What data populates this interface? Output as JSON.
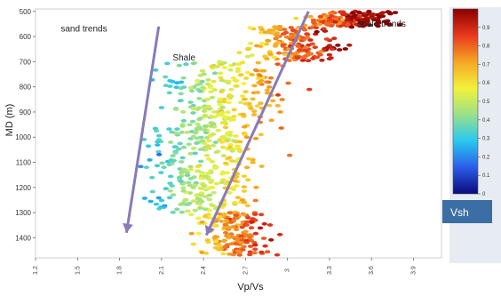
{
  "chart_data": {
    "type": "scatter",
    "xlabel": "Vp/Vs",
    "ylabel": "MD (m)",
    "xticks": [
      "1.2",
      "1.5",
      "1.8",
      "2.1",
      "2.4",
      "2.7",
      "3",
      "3.3",
      "3.6",
      "3.9"
    ],
    "yticks": [
      "500",
      "600",
      "700",
      "800",
      "900",
      "1000",
      "1100",
      "1200",
      "1300",
      "1400"
    ],
    "xlim": [
      1.2,
      4.1
    ],
    "ylim": [
      1480,
      490
    ],
    "y_inverted": true,
    "colorbar": {
      "label": "Vsh",
      "ticks": [
        "0",
        "0.1",
        "0.2",
        "0.3",
        "0.4",
        "0.5",
        "0.6",
        "0.7",
        "0.8",
        "0.9"
      ],
      "range": [
        0,
        1
      ],
      "colors": [
        "#0a0a7a",
        "#2a5de8",
        "#28c8f0",
        "#9be08a",
        "#f2f23a",
        "#f5a623",
        "#e8381e",
        "#8b0000"
      ]
    },
    "annotations": [
      {
        "text": "sand trends",
        "x": 1.38,
        "y": 580
      },
      {
        "text": "Shale",
        "x": 2.18,
        "y": 695
      },
      {
        "text": "shale trends",
        "x": 3.5,
        "y": 560
      }
    ],
    "trend_lines": [
      {
        "name": "sand trend",
        "x": [
          2.08,
          1.85
        ],
        "y": [
          560,
          1380
        ]
      },
      {
        "name": "shale trend",
        "x": [
          3.15,
          2.42
        ],
        "y": [
          500,
          1390
        ]
      }
    ],
    "series": [
      {
        "depth_band": [
          500,
          560
        ],
        "vpvs_center": 3.45,
        "vpvs_spread": 0.45,
        "vsh_mean": 0.9
      },
      {
        "depth_band": [
          560,
          700
        ],
        "vpvs_center": 3.05,
        "vpvs_spread": 0.55,
        "vsh_mean": 0.78
      },
      {
        "depth_band": [
          700,
          900
        ],
        "vpvs_center": 2.55,
        "vpvs_spread": 0.75,
        "vsh_mean": 0.55
      },
      {
        "depth_band": [
          900,
          1100
        ],
        "vpvs_center": 2.45,
        "vpvs_spread": 0.75,
        "vsh_mean": 0.5
      },
      {
        "depth_band": [
          1100,
          1300
        ],
        "vpvs_center": 2.4,
        "vpvs_spread": 0.65,
        "vsh_mean": 0.5
      },
      {
        "depth_band": [
          1300,
          1470
        ],
        "vpvs_center": 2.6,
        "vpvs_spread": 0.45,
        "vsh_mean": 0.75
      }
    ]
  }
}
